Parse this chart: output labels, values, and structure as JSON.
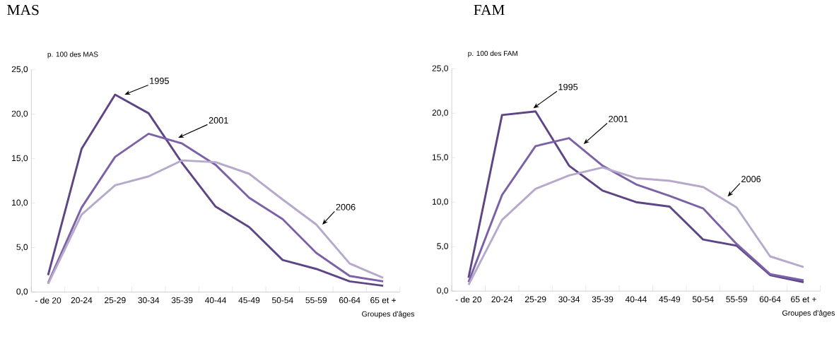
{
  "chart_data": [
    {
      "type": "line",
      "title": "MAS",
      "ylabel": "p. 100 des MAS",
      "xlabel": "Groupes d'âges",
      "categories": [
        "- de 20",
        "20-24",
        "25-29",
        "30-34",
        "35-39",
        "40-44",
        "45-49",
        "50-54",
        "55-59",
        "60-64",
        "65 et +"
      ],
      "ylim": [
        0,
        25
      ],
      "yticks": [
        {
          "value": 0,
          "label": "0,0"
        },
        {
          "value": 5,
          "label": "5,0"
        },
        {
          "value": 10,
          "label": "10,0"
        },
        {
          "value": 15,
          "label": "15,0"
        },
        {
          "value": 20,
          "label": "20,0"
        },
        {
          "value": 25,
          "label": "25,0"
        }
      ],
      "grid": false,
      "legend": false,
      "marker": "none",
      "line_style": "solid",
      "series": [
        {
          "name": "1995",
          "color": "#5e4585",
          "values": [
            1.9,
            16.1,
            22.2,
            20.1,
            14.5,
            9.6,
            7.3,
            3.6,
            2.6,
            1.2,
            0.7
          ]
        },
        {
          "name": "2001",
          "color": "#7b62a8",
          "values": [
            1.0,
            9.5,
            15.2,
            17.8,
            16.7,
            14.3,
            10.6,
            8.2,
            4.4,
            1.8,
            1.2
          ]
        },
        {
          "name": "2006",
          "color": "#b7a9cc",
          "values": [
            0.9,
            8.7,
            12.0,
            13.0,
            14.8,
            14.6,
            13.3,
            10.4,
            7.6,
            3.2,
            1.6
          ]
        }
      ]
    },
    {
      "type": "line",
      "title": "FAM",
      "ylabel": "p. 100 des FAM",
      "xlabel": "Groupes d'âges",
      "categories": [
        "- de 20",
        "20-24",
        "25-29",
        "30-34",
        "35-39",
        "40-44",
        "45-49",
        "50-54",
        "55-59",
        "60-64",
        "65 et +"
      ],
      "ylim": [
        0,
        25
      ],
      "yticks": [
        {
          "value": 0,
          "label": "0,0"
        },
        {
          "value": 5,
          "label": "5,0"
        },
        {
          "value": 10,
          "label": "10,0"
        },
        {
          "value": 15,
          "label": "15,0"
        },
        {
          "value": 20,
          "label": "20,0"
        },
        {
          "value": 25,
          "label": "25,0"
        }
      ],
      "grid": false,
      "legend": false,
      "marker": "none",
      "line_style": "solid",
      "series": [
        {
          "name": "1995",
          "color": "#5e4585",
          "values": [
            1.5,
            19.8,
            20.2,
            14.1,
            11.3,
            10.0,
            9.5,
            5.8,
            5.1,
            1.8,
            1.0
          ]
        },
        {
          "name": "2001",
          "color": "#7b62a8",
          "values": [
            1.0,
            10.8,
            16.3,
            17.2,
            14.1,
            12.0,
            10.7,
            9.3,
            5.3,
            1.9,
            1.2
          ]
        },
        {
          "name": "2006",
          "color": "#b7a9cc",
          "values": [
            0.7,
            8.0,
            11.5,
            13.0,
            13.9,
            12.7,
            12.4,
            11.7,
            9.4,
            3.9,
            2.7
          ]
        }
      ]
    }
  ]
}
